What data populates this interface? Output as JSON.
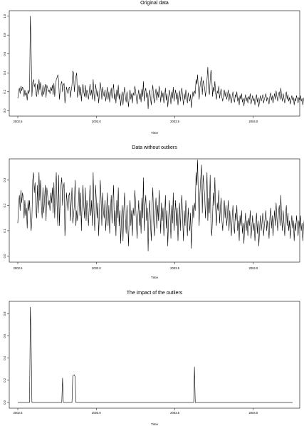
{
  "chart_data": [
    {
      "type": "line",
      "title": "Original data",
      "xlabel": "Time",
      "ylabel": "",
      "xlim": [
        2002.45,
        2004.3
      ],
      "ylim": [
        -0.02,
        1.02
      ],
      "x_ticks": [
        "2002.5",
        "2003.0",
        "2003.5",
        "2004.0"
      ],
      "y_ticks": [
        "0.0",
        "0.2",
        "0.4",
        "0.6",
        "0.8",
        "1.0"
      ],
      "x_start": 2002.5,
      "x_step": 0.005,
      "series": [
        {
          "values": [
            0.13,
            0.2,
            0.24,
            0.18,
            0.26,
            0.21,
            0.25,
            0.23,
            0.15,
            0.22,
            0.16,
            0.19,
            0.11,
            0.22,
            0.18,
            0.22,
            1.0,
            0.65,
            0.15,
            0.3,
            0.33,
            0.25,
            0.29,
            0.18,
            0.15,
            0.28,
            0.17,
            0.33,
            0.22,
            0.3,
            0.2,
            0.15,
            0.27,
            0.17,
            0.22,
            0.28,
            0.14,
            0.27,
            0.24,
            0.2,
            0.22,
            0.18,
            0.25,
            0.21,
            0.27,
            0.17,
            0.29,
            0.15,
            0.25,
            0.33,
            0.35,
            0.38,
            0.32,
            0.12,
            0.22,
            0.28,
            0.31,
            0.2,
            0.27,
            0.29,
            0.08,
            0.15,
            0.25,
            0.21,
            0.18,
            0.24,
            0.25,
            0.14,
            0.21,
            0.27,
            0.42,
            0.4,
            0.2,
            0.3,
            0.36,
            0.4,
            0.14,
            0.2,
            0.27,
            0.16,
            0.25,
            0.1,
            0.22,
            0.28,
            0.2,
            0.15,
            0.27,
            0.14,
            0.22,
            0.18,
            0.12,
            0.2,
            0.28,
            0.16,
            0.22,
            0.12,
            0.33,
            0.18,
            0.1,
            0.28,
            0.22,
            0.15,
            0.21,
            0.08,
            0.18,
            0.3,
            0.23,
            0.12,
            0.25,
            0.18,
            0.15,
            0.22,
            0.1,
            0.17,
            0.25,
            0.12,
            0.2,
            0.09,
            0.17,
            0.24,
            0.13,
            0.21,
            0.28,
            0.12,
            0.18,
            0.08,
            0.22,
            0.15,
            0.27,
            0.12,
            0.18,
            0.05,
            0.14,
            0.2,
            0.06,
            0.18,
            0.25,
            0.15,
            0.09,
            0.2,
            0.13,
            0.04,
            0.17,
            0.22,
            0.12,
            0.18,
            0.08,
            0.19,
            0.16,
            0.26,
            0.21,
            0.13,
            0.07,
            0.16,
            0.22,
            0.12,
            0.18,
            0.09,
            0.23,
            0.15,
            0.31,
            0.1,
            0.2,
            0.24,
            0.14,
            0.19,
            0.02,
            0.17,
            0.22,
            0.13,
            0.06,
            0.2,
            0.27,
            0.14,
            0.08,
            0.18,
            0.23,
            0.11,
            0.2,
            0.14,
            0.26,
            0.18,
            0.09,
            0.21,
            0.14,
            0.19,
            0.08,
            0.15,
            0.24,
            0.11,
            0.18,
            0.04,
            0.14,
            0.22,
            0.16,
            0.07,
            0.2,
            0.13,
            0.25,
            0.1,
            0.17,
            0.22,
            0.12,
            0.19,
            0.06,
            0.16,
            0.21,
            0.1,
            0.2,
            0.24,
            0.14,
            0.06,
            0.18,
            0.12,
            0.22,
            0.15,
            0.08,
            0.19,
            0.13,
            0.1,
            0.17,
            0.03,
            0.12,
            0.2,
            0.15,
            0.21,
            0.18,
            0.33,
            0.28,
            0.38,
            0.22,
            0.12,
            0.25,
            0.31,
            0.36,
            0.17,
            0.32,
            0.28,
            0.24,
            0.15,
            0.23,
            0.33,
            0.46,
            0.23,
            0.17,
            0.32,
            0.43,
            0.36,
            0.15,
            0.25,
            0.2,
            0.31,
            0.18,
            0.12,
            0.21,
            0.18,
            0.26,
            0.13,
            0.19,
            0.23,
            0.14,
            0.1,
            0.18,
            0.22,
            0.15,
            0.2,
            0.12,
            0.16,
            0.22,
            0.1,
            0.18,
            0.13,
            0.08,
            0.15,
            0.2,
            0.12,
            0.09,
            0.17,
            0.14,
            0.2,
            0.1,
            0.14,
            0.06,
            0.16,
            0.12,
            0.18,
            0.09,
            0.13,
            0.05,
            0.12,
            0.17,
            0.1,
            0.14,
            0.08,
            0.15,
            0.12,
            0.18,
            0.07,
            0.11,
            0.16,
            0.1,
            0.13,
            0.06,
            0.12,
            0.17,
            0.09,
            0.14,
            0.04,
            0.11,
            0.16,
            0.1,
            0.13,
            0.17,
            0.08,
            0.12,
            0.15,
            0.18,
            0.1,
            0.14,
            0.12,
            0.07,
            0.15,
            0.19,
            0.11,
            0.16,
            0.08,
            0.13,
            0.18,
            0.12,
            0.21,
            0.15,
            0.1,
            0.17,
            0.2,
            0.12,
            0.24,
            0.15,
            0.1,
            0.18,
            0.13,
            0.08,
            0.16,
            0.2,
            0.12,
            0.17,
            0.1,
            0.14,
            0.07,
            0.12,
            0.16,
            0.11,
            0.14,
            0.06,
            0.13,
            0.1,
            0.16,
            0.12,
            0.08,
            0.14,
            0.11,
            0.16,
            0.1,
            0.13,
            0.06,
            0.12,
            0.15,
            0.09,
            0.13,
            0.07,
            0.14,
            0.11,
            0.16,
            0.1,
            0.13,
            0.06,
            0.11,
            0.09,
            0.13,
            0.04
          ]
        }
      ]
    },
    {
      "type": "line",
      "title": "Data without outliers",
      "xlabel": "Time",
      "ylabel": "",
      "xlim": [
        2002.45,
        2004.3
      ],
      "ylim": [
        -0.01,
        0.37
      ],
      "x_ticks": [
        "2002.5",
        "2003.0",
        "2003.5",
        "2004.0"
      ],
      "y_ticks": [
        "0.0",
        "0.1",
        "0.2",
        "0.3"
      ],
      "x_start": 2002.5,
      "x_step": 0.005,
      "series": [
        {
          "values": [
            0.13,
            0.2,
            0.24,
            0.18,
            0.26,
            0.21,
            0.25,
            0.23,
            0.15,
            0.22,
            0.16,
            0.19,
            0.11,
            0.22,
            0.18,
            0.22,
            0.14,
            0.1,
            0.15,
            0.3,
            0.33,
            0.25,
            0.29,
            0.18,
            0.15,
            0.28,
            0.17,
            0.33,
            0.22,
            0.3,
            0.2,
            0.15,
            0.27,
            0.17,
            0.22,
            0.28,
            0.14,
            0.27,
            0.24,
            0.2,
            0.22,
            0.18,
            0.25,
            0.21,
            0.27,
            0.17,
            0.29,
            0.15,
            0.25,
            0.33,
            0.2,
            0.12,
            0.32,
            0.12,
            0.22,
            0.28,
            0.31,
            0.2,
            0.27,
            0.29,
            0.08,
            0.15,
            0.25,
            0.21,
            0.18,
            0.24,
            0.25,
            0.14,
            0.21,
            0.27,
            0.13,
            0.16,
            0.2,
            0.3,
            0.12,
            0.18,
            0.14,
            0.2,
            0.27,
            0.16,
            0.25,
            0.1,
            0.22,
            0.28,
            0.2,
            0.15,
            0.27,
            0.14,
            0.22,
            0.18,
            0.12,
            0.2,
            0.28,
            0.16,
            0.22,
            0.12,
            0.33,
            0.18,
            0.1,
            0.28,
            0.22,
            0.15,
            0.21,
            0.08,
            0.18,
            0.3,
            0.23,
            0.12,
            0.25,
            0.18,
            0.15,
            0.22,
            0.1,
            0.17,
            0.25,
            0.12,
            0.2,
            0.09,
            0.17,
            0.24,
            0.13,
            0.21,
            0.28,
            0.12,
            0.18,
            0.08,
            0.22,
            0.15,
            0.27,
            0.12,
            0.18,
            0.05,
            0.14,
            0.2,
            0.06,
            0.18,
            0.25,
            0.15,
            0.09,
            0.2,
            0.13,
            0.04,
            0.17,
            0.22,
            0.12,
            0.18,
            0.08,
            0.19,
            0.16,
            0.26,
            0.21,
            0.13,
            0.07,
            0.16,
            0.22,
            0.12,
            0.18,
            0.09,
            0.23,
            0.15,
            0.31,
            0.1,
            0.2,
            0.24,
            0.14,
            0.19,
            0.02,
            0.17,
            0.22,
            0.13,
            0.06,
            0.2,
            0.27,
            0.14,
            0.08,
            0.18,
            0.23,
            0.11,
            0.2,
            0.14,
            0.26,
            0.18,
            0.09,
            0.21,
            0.14,
            0.19,
            0.08,
            0.15,
            0.24,
            0.11,
            0.18,
            0.04,
            0.14,
            0.22,
            0.16,
            0.07,
            0.2,
            0.13,
            0.25,
            0.1,
            0.17,
            0.22,
            0.12,
            0.19,
            0.06,
            0.16,
            0.21,
            0.1,
            0.2,
            0.24,
            0.14,
            0.06,
            0.18,
            0.12,
            0.22,
            0.15,
            0.08,
            0.19,
            0.13,
            0.1,
            0.17,
            0.03,
            0.12,
            0.2,
            0.15,
            0.21,
            0.18,
            0.33,
            0.28,
            0.38,
            0.22,
            0.12,
            0.25,
            0.31,
            0.36,
            0.17,
            0.32,
            0.28,
            0.24,
            0.15,
            0.23,
            0.33,
            0.14,
            0.23,
            0.17,
            0.32,
            0.12,
            0.08,
            0.15,
            0.25,
            0.2,
            0.31,
            0.18,
            0.12,
            0.21,
            0.18,
            0.26,
            0.13,
            0.19,
            0.23,
            0.14,
            0.1,
            0.18,
            0.22,
            0.15,
            0.2,
            0.12,
            0.16,
            0.22,
            0.1,
            0.18,
            0.13,
            0.08,
            0.15,
            0.2,
            0.12,
            0.09,
            0.17,
            0.14,
            0.2,
            0.1,
            0.14,
            0.06,
            0.16,
            0.12,
            0.18,
            0.09,
            0.13,
            0.05,
            0.12,
            0.17,
            0.1,
            0.14,
            0.08,
            0.15,
            0.12,
            0.18,
            0.07,
            0.11,
            0.16,
            0.1,
            0.13,
            0.06,
            0.12,
            0.17,
            0.09,
            0.14,
            0.04,
            0.11,
            0.16,
            0.1,
            0.13,
            0.17,
            0.08,
            0.12,
            0.15,
            0.18,
            0.1,
            0.14,
            0.12,
            0.07,
            0.15,
            0.19,
            0.11,
            0.16,
            0.08,
            0.13,
            0.18,
            0.12,
            0.21,
            0.15,
            0.1,
            0.17,
            0.2,
            0.12,
            0.24,
            0.15,
            0.1,
            0.18,
            0.13,
            0.08,
            0.16,
            0.2,
            0.12,
            0.17,
            0.1,
            0.14,
            0.07,
            0.12,
            0.16,
            0.11,
            0.14,
            0.06,
            0.13,
            0.1,
            0.16,
            0.12,
            0.08,
            0.14,
            0.11,
            0.16,
            0.1,
            0.13,
            0.06,
            0.12,
            0.15,
            0.09,
            0.13,
            0.07,
            0.14,
            0.11,
            0.16,
            0.1,
            0.13,
            0.06,
            0.11,
            0.09,
            0.13,
            0.04
          ]
        }
      ]
    },
    {
      "type": "line",
      "title": "The impact of the outliers",
      "xlabel": "Time",
      "ylabel": "",
      "xlim": [
        2002.45,
        2004.3
      ],
      "ylim": [
        -0.02,
        0.88
      ],
      "x_ticks": [
        "2002.5",
        "2003.0",
        "2003.5",
        "2004.0"
      ],
      "y_ticks": [
        "0.0",
        "0.2",
        "0.4",
        "0.6",
        "0.8"
      ],
      "segments": [
        {
          "x": 2002.5,
          "y": 0.0
        },
        {
          "x": 2002.575,
          "y": 0.0
        },
        {
          "x": 2002.58,
          "y": 0.86
        },
        {
          "x": 2002.585,
          "y": 0.55
        },
        {
          "x": 2002.59,
          "y": 0.0
        },
        {
          "x": 2002.78,
          "y": 0.0
        },
        {
          "x": 2002.785,
          "y": 0.22
        },
        {
          "x": 2002.79,
          "y": 0.0
        },
        {
          "x": 2002.845,
          "y": 0.0
        },
        {
          "x": 2002.85,
          "y": 0.24
        },
        {
          "x": 2002.86,
          "y": 0.25
        },
        {
          "x": 2002.865,
          "y": 0.23
        },
        {
          "x": 2002.87,
          "y": 0.0
        },
        {
          "x": 2003.62,
          "y": 0.0
        },
        {
          "x": 2003.625,
          "y": 0.32
        },
        {
          "x": 2003.63,
          "y": 0.0
        },
        {
          "x": 2004.25,
          "y": 0.0
        }
      ]
    }
  ]
}
